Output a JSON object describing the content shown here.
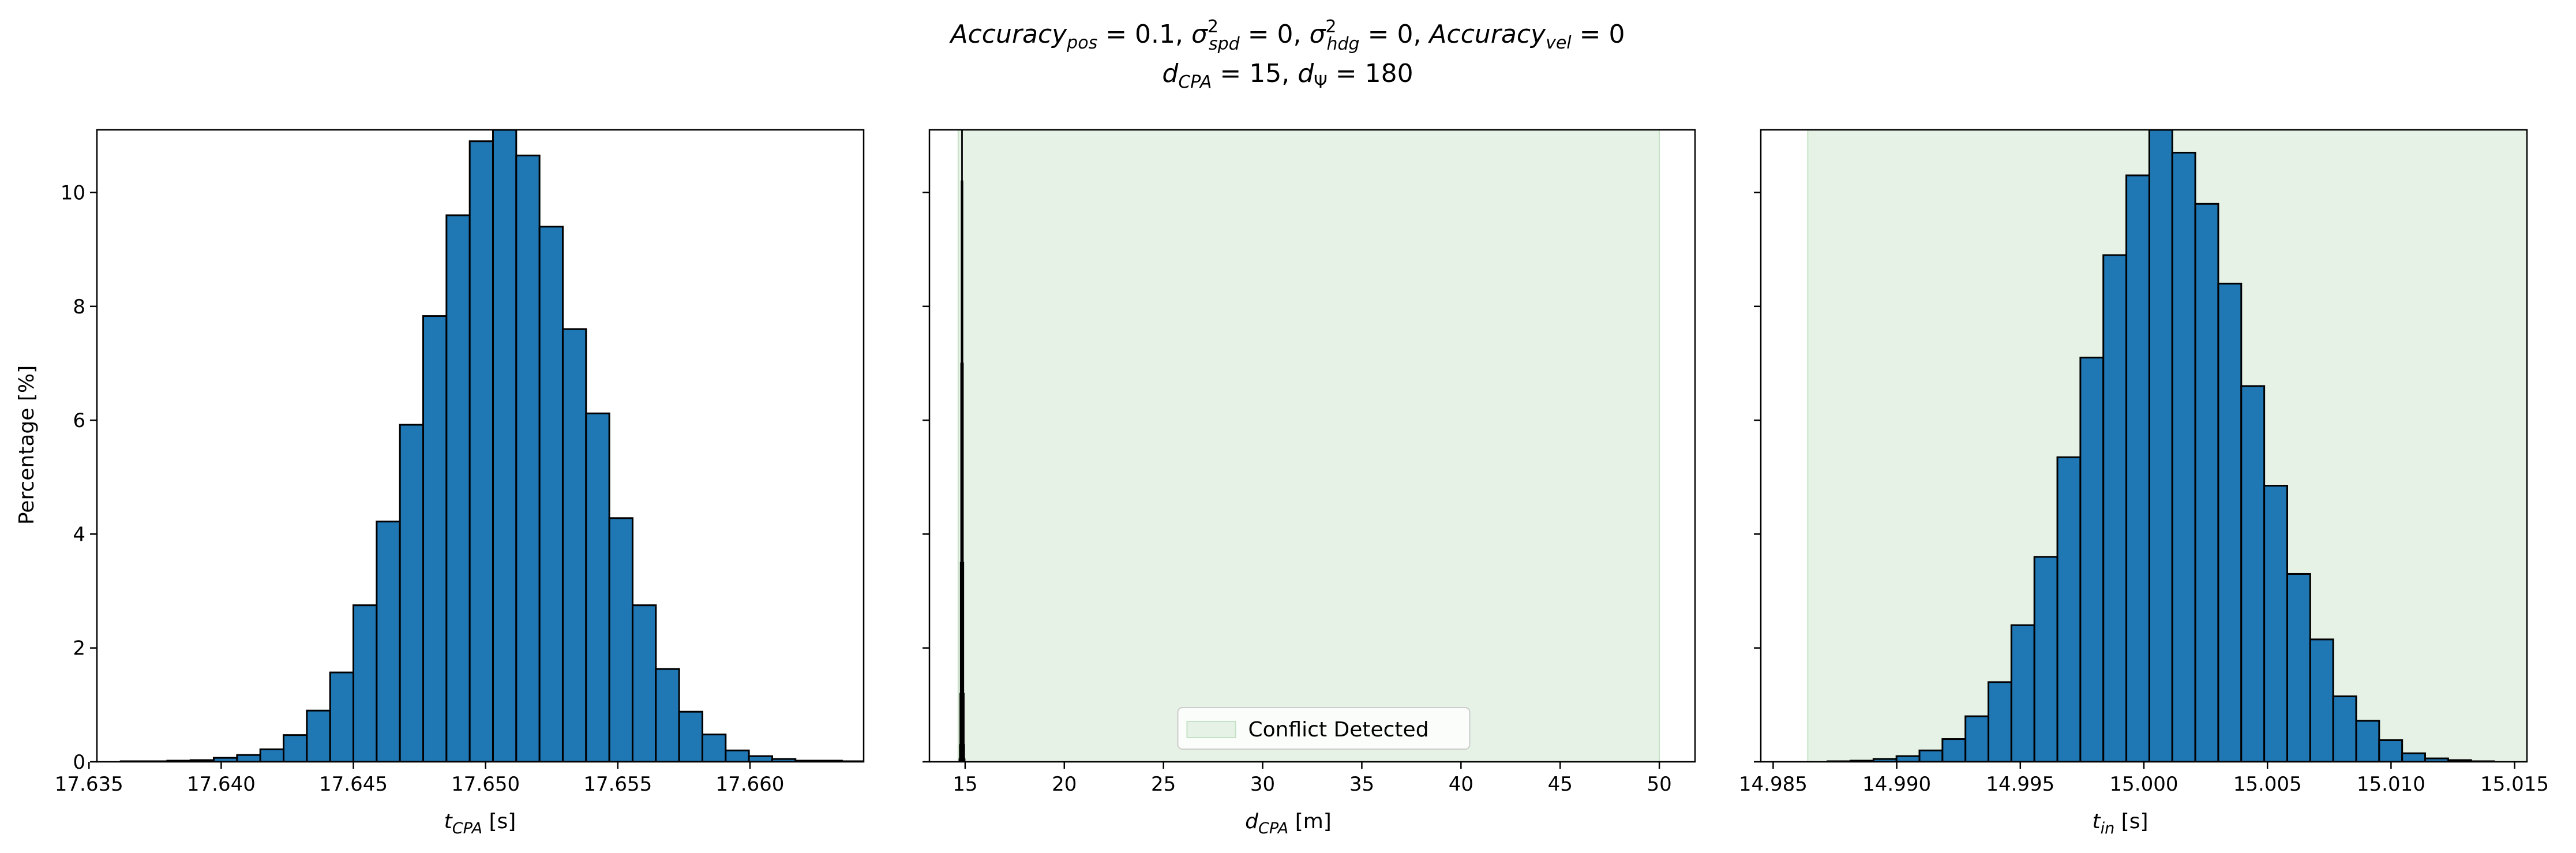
{
  "figure": {
    "title_line1": "Accuracy_pos = 0.1, σ²_spd = 0, σ²_hdg = 0, Accuracy_vel = 0",
    "title_line2": "d_CPA = 15, d_Ψ = 180",
    "ylabel": "Percentage [%]"
  },
  "colors": {
    "bar_fill": "#1f77b4",
    "bar_edge": "#000000",
    "conflict_fill": "#e5f2e5",
    "conflict_edge": "#c6e2c6"
  },
  "chart_data": [
    {
      "type": "bar",
      "title": "",
      "xlabel": "t_CPA [s]",
      "ylabel": "Percentage [%]",
      "xlim": [
        17.6353,
        17.6643
      ],
      "ylim": [
        0,
        11.1
      ],
      "xticks": [
        {
          "value": 17.635,
          "label": "17.635"
        },
        {
          "value": 17.64,
          "label": "17.640"
        },
        {
          "value": 17.645,
          "label": "17.645"
        },
        {
          "value": 17.65,
          "label": "17.650"
        },
        {
          "value": 17.655,
          "label": "17.655"
        },
        {
          "value": 17.66,
          "label": "17.660"
        }
      ],
      "yticks": [
        {
          "value": 0,
          "label": "0"
        },
        {
          "value": 2,
          "label": "2"
        },
        {
          "value": 4,
          "label": "4"
        },
        {
          "value": 6,
          "label": "6"
        },
        {
          "value": 8,
          "label": "8"
        },
        {
          "value": 10,
          "label": "10"
        }
      ],
      "bins_start": 17.6362,
      "bin_width": 0.00088,
      "values": [
        0.01,
        0.01,
        0.02,
        0.03,
        0.07,
        0.12,
        0.22,
        0.47,
        0.9,
        1.57,
        2.75,
        4.22,
        5.92,
        7.83,
        9.6,
        10.9,
        11.1,
        10.65,
        9.4,
        7.6,
        6.12,
        4.28,
        2.75,
        1.63,
        0.88,
        0.48,
        0.2,
        0.1,
        0.05,
        0.02,
        0.02,
        0.01
      ],
      "show_ylabels": true
    },
    {
      "type": "bar",
      "title": "",
      "xlabel": "d_CPA [m]",
      "ylabel": "",
      "xlim": [
        13.2,
        51.8
      ],
      "ylim": [
        0,
        11.1
      ],
      "xticks": [
        {
          "value": 15,
          "label": "15"
        },
        {
          "value": 20,
          "label": "20"
        },
        {
          "value": 25,
          "label": "25"
        },
        {
          "value": 30,
          "label": "30"
        },
        {
          "value": 35,
          "label": "35"
        },
        {
          "value": 40,
          "label": "40"
        },
        {
          "value": 45,
          "label": "45"
        },
        {
          "value": 50,
          "label": "50"
        }
      ],
      "yticks": [
        {
          "value": 0,
          "label": ""
        },
        {
          "value": 2,
          "label": ""
        },
        {
          "value": 4,
          "label": ""
        },
        {
          "value": 6,
          "label": ""
        },
        {
          "value": 8,
          "label": ""
        },
        {
          "value": 10,
          "label": ""
        }
      ],
      "bins_start": 14.7,
      "bin_width": 0.022,
      "values": [
        0.05,
        0.3,
        1.2,
        3.5,
        7.0,
        10.2,
        11.1,
        10.2,
        7.0,
        3.5,
        1.2,
        0.3,
        0.05
      ],
      "conflict_region": [
        14.65,
        50.0
      ],
      "legend": {
        "label": "Conflict Detected",
        "position": "lower center"
      },
      "show_ylabels": false
    },
    {
      "type": "bar",
      "title": "",
      "xlabel": "t_in [s]",
      "ylabel": "",
      "xlim": [
        14.9845,
        15.0155
      ],
      "ylim": [
        0,
        11.1
      ],
      "xticks": [
        {
          "value": 14.985,
          "label": "14.985"
        },
        {
          "value": 14.99,
          "label": "14.990"
        },
        {
          "value": 14.995,
          "label": "14.995"
        },
        {
          "value": 15.0,
          "label": "15.000"
        },
        {
          "value": 15.005,
          "label": "15.005"
        },
        {
          "value": 15.01,
          "label": "15.010"
        },
        {
          "value": 15.015,
          "label": "15.015"
        }
      ],
      "yticks": [
        {
          "value": 0,
          "label": ""
        },
        {
          "value": 2,
          "label": ""
        },
        {
          "value": 4,
          "label": ""
        },
        {
          "value": 6,
          "label": ""
        },
        {
          "value": 8,
          "label": ""
        },
        {
          "value": 10,
          "label": ""
        }
      ],
      "bins_start": 14.9872,
      "bin_width": 0.00093,
      "values": [
        0.01,
        0.02,
        0.05,
        0.1,
        0.2,
        0.4,
        0.8,
        1.4,
        2.4,
        3.6,
        5.35,
        7.1,
        8.9,
        10.3,
        11.1,
        10.7,
        9.8,
        8.4,
        6.6,
        4.85,
        3.3,
        2.15,
        1.15,
        0.72,
        0.38,
        0.15,
        0.06,
        0.03,
        0.01
      ],
      "conflict_region": [
        14.9864,
        15.016
      ],
      "show_ylabels": false
    }
  ]
}
